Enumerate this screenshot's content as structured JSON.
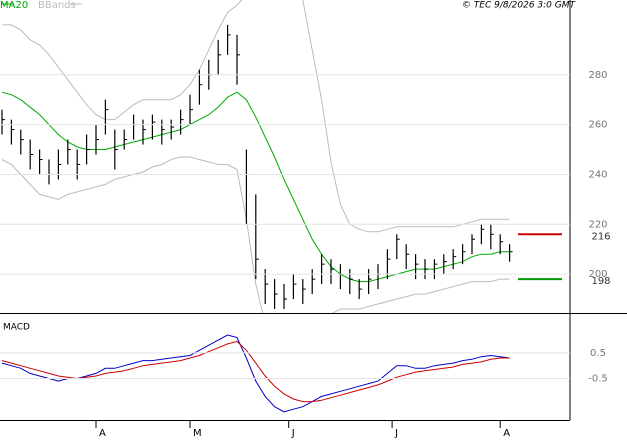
{
  "chart_data": [
    {
      "type": "hlc",
      "credit": "© TEC 9/8/2026 3:0 GMT",
      "x": [
        0,
        2,
        4,
        6,
        8,
        10,
        12,
        14,
        16,
        18,
        20,
        22,
        24,
        26,
        28,
        30,
        32,
        34,
        36,
        38,
        40,
        42,
        44,
        46,
        48,
        50,
        52,
        54,
        56,
        58,
        60,
        62,
        64,
        66,
        68,
        70,
        72,
        74,
        76,
        78,
        80,
        82,
        84,
        86,
        88,
        90,
        92,
        94,
        96,
        98,
        100,
        102,
        104,
        106,
        108
      ],
      "high": [
        266,
        262,
        258,
        254,
        250,
        246,
        250,
        254,
        250,
        256,
        260,
        270,
        258,
        258,
        264,
        262,
        264,
        262,
        262,
        266,
        272,
        282,
        286,
        294,
        300,
        296,
        250,
        232,
        202,
        198,
        196,
        200,
        198,
        202,
        208,
        206,
        204,
        202,
        198,
        202,
        204,
        210,
        216,
        212,
        208,
        206,
        206,
        208,
        210,
        212,
        216,
        220,
        220,
        216,
        212
      ],
      "low": [
        256,
        252,
        248,
        242,
        240,
        236,
        238,
        244,
        238,
        244,
        248,
        256,
        242,
        250,
        254,
        252,
        254,
        252,
        254,
        256,
        260,
        268,
        274,
        280,
        288,
        276,
        220,
        198,
        188,
        186,
        186,
        190,
        188,
        192,
        196,
        196,
        194,
        192,
        190,
        192,
        194,
        198,
        206,
        202,
        198,
        198,
        198,
        200,
        202,
        204,
        208,
        212,
        210,
        208,
        205
      ],
      "close": [
        262,
        258,
        254,
        248,
        246,
        240,
        244,
        250,
        244,
        250,
        254,
        266,
        250,
        254,
        260,
        258,
        261,
        258,
        259,
        262,
        266,
        276,
        280,
        288,
        296,
        288,
        240,
        206,
        196,
        192,
        190,
        196,
        194,
        198,
        204,
        202,
        200,
        198,
        194,
        198,
        200,
        206,
        214,
        208,
        204,
        202,
        204,
        205,
        207,
        209,
        214,
        218,
        216,
        213,
        209
      ],
      "bar_color": "#000000",
      "series": [
        {
          "name": "MA20",
          "color": "#00aa00",
          "values": [
            273,
            272,
            270,
            267,
            264,
            260,
            256,
            253,
            251,
            250,
            250,
            250,
            251,
            252,
            253,
            254,
            255,
            256,
            257,
            258,
            260,
            262,
            264,
            267,
            271,
            273,
            270,
            263,
            255,
            247,
            238,
            230,
            222,
            214,
            208,
            203,
            200,
            198,
            197,
            197,
            198,
            199,
            200,
            201,
            202,
            202,
            202,
            203,
            204,
            205,
            207,
            208,
            208,
            209,
            209
          ]
        },
        {
          "name": "BBands",
          "color": "#bbbbbb",
          "upper": [
            300,
            300,
            298,
            294,
            292,
            288,
            283,
            278,
            273,
            268,
            264,
            262,
            262,
            265,
            268,
            270,
            270,
            270,
            270,
            272,
            276,
            282,
            290,
            298,
            305,
            308,
            312,
            318,
            322,
            324,
            322,
            318,
            310,
            290,
            270,
            245,
            228,
            220,
            218,
            217,
            217,
            218,
            219,
            219,
            219,
            219,
            219,
            219,
            219,
            220,
            221,
            222,
            222,
            222,
            222
          ],
          "lower": [
            246,
            244,
            240,
            236,
            232,
            231,
            230,
            232,
            233,
            234,
            235,
            236,
            238,
            239,
            240,
            241,
            243,
            244,
            246,
            247,
            247,
            246,
            245,
            244,
            244,
            242,
            222,
            196,
            180,
            172,
            164,
            158,
            156,
            160,
            170,
            184,
            186,
            186,
            186,
            187,
            188,
            189,
            190,
            191,
            192,
            192,
            193,
            194,
            195,
            196,
            197,
            197,
            197,
            198,
            198
          ]
        }
      ],
      "levels": [
        {
          "value": 216,
          "color": "#cc0000"
        },
        {
          "value": 198,
          "color": "#009900"
        }
      ],
      "xlim": [
        0,
        120
      ],
      "ylim": [
        184.4,
        310
      ],
      "yticks": [
        200,
        220,
        240,
        260,
        280
      ],
      "grid": true
    },
    {
      "type": "line",
      "title": "MACD",
      "x": [
        0,
        2,
        4,
        6,
        8,
        10,
        12,
        14,
        16,
        18,
        20,
        22,
        24,
        26,
        28,
        30,
        32,
        34,
        36,
        38,
        40,
        42,
        44,
        46,
        48,
        50,
        52,
        54,
        56,
        58,
        60,
        62,
        64,
        66,
        68,
        70,
        72,
        74,
        76,
        78,
        80,
        82,
        84,
        86,
        88,
        90,
        92,
        94,
        96,
        98,
        100,
        102,
        104,
        106,
        108
      ],
      "series": [
        {
          "color": "#0000cc",
          "values": [
            0.1,
            0.0,
            -0.1,
            -0.3,
            -0.4,
            -0.5,
            -0.6,
            -0.5,
            -0.5,
            -0.4,
            -0.3,
            -0.1,
            -0.1,
            0.0,
            0.1,
            0.2,
            0.2,
            0.25,
            0.3,
            0.35,
            0.4,
            0.6,
            0.8,
            1.0,
            1.2,
            1.1,
            0.3,
            -0.6,
            -1.2,
            -1.6,
            -1.8,
            -1.7,
            -1.6,
            -1.4,
            -1.2,
            -1.1,
            -1.0,
            -0.9,
            -0.8,
            -0.7,
            -0.6,
            -0.3,
            0.0,
            0.0,
            -0.1,
            -0.1,
            0.0,
            0.05,
            0.1,
            0.2,
            0.25,
            0.35,
            0.4,
            0.35,
            0.3
          ]
        },
        {
          "color": "#cc0000",
          "values": [
            0.2,
            0.1,
            0.0,
            -0.1,
            -0.2,
            -0.3,
            -0.4,
            -0.45,
            -0.5,
            -0.45,
            -0.4,
            -0.3,
            -0.25,
            -0.2,
            -0.1,
            0.0,
            0.05,
            0.1,
            0.15,
            0.2,
            0.3,
            0.4,
            0.55,
            0.7,
            0.85,
            0.95,
            0.6,
            0.1,
            -0.4,
            -0.8,
            -1.1,
            -1.3,
            -1.4,
            -1.4,
            -1.35,
            -1.25,
            -1.15,
            -1.05,
            -0.95,
            -0.85,
            -0.75,
            -0.6,
            -0.45,
            -0.35,
            -0.25,
            -0.2,
            -0.15,
            -0.1,
            -0.05,
            0.05,
            0.1,
            0.15,
            0.25,
            0.3,
            0.3
          ]
        }
      ],
      "xlim": [
        0,
        120
      ],
      "ylim": [
        -2.12,
        1.98
      ],
      "yticks": [
        {
          "value": 0.5,
          "label": "0.5"
        },
        {
          "value": -0.5,
          "label": "-0.5"
        }
      ],
      "grid": true,
      "xticks": [
        {
          "value": 20,
          "label": "A"
        },
        {
          "value": 40,
          "label": "M"
        },
        {
          "value": 61,
          "label": "J"
        },
        {
          "value": 83,
          "label": "J"
        },
        {
          "value": 106,
          "label": "A"
        }
      ]
    }
  ]
}
